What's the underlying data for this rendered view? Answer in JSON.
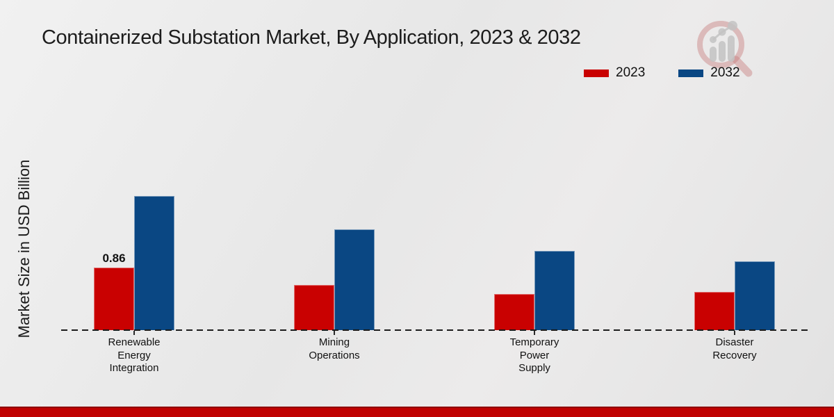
{
  "title": "Containerized Substation Market, By Application, 2023 & 2032",
  "ylabel": "Market Size in USD Billion",
  "legend": {
    "items": [
      {
        "label": "2023",
        "color": "#c90101"
      },
      {
        "label": "2032",
        "color": "#0a4783"
      }
    ]
  },
  "logo": {
    "name": "magnifier-bar-chart-logo"
  },
  "footer": {
    "accent_color": "#c00101"
  },
  "chart_data": {
    "type": "bar",
    "title": "Containerized Substation Market, By Application, 2023 & 2032",
    "xlabel": "",
    "ylabel": "Market Size in USD Billion",
    "categories": [
      "Renewable Energy Integration",
      "Mining Operations",
      "Temporary Power Supply",
      "Disaster Recovery"
    ],
    "series": [
      {
        "name": "2023",
        "color": "#c90101",
        "values": [
          0.86,
          0.62,
          0.5,
          0.53
        ]
      },
      {
        "name": "2032",
        "color": "#0a4783",
        "values": [
          1.84,
          1.39,
          1.09,
          0.95
        ]
      }
    ],
    "data_labels": [
      {
        "series": "2023",
        "category": "Renewable Energy Integration",
        "text": "0.86"
      }
    ],
    "ylim": [
      0,
      2.0
    ],
    "grid": false,
    "legend_position": "top-right",
    "baseline_style": "dashed",
    "y_axis_ticks_visible": false
  }
}
